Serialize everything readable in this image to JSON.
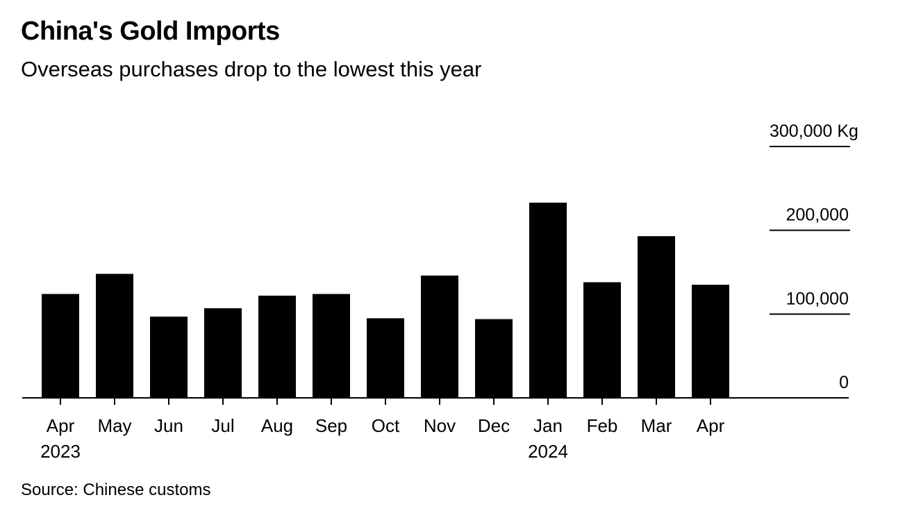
{
  "title": "China's Gold Imports",
  "subtitle": "Overseas purchases drop to the lowest this year",
  "source": "Source: Chinese customs",
  "chart_data": {
    "type": "bar",
    "categories": [
      "Apr",
      "May",
      "Jun",
      "Jul",
      "Aug",
      "Sep",
      "Oct",
      "Nov",
      "Dec",
      "Jan",
      "Feb",
      "Mar",
      "Apr"
    ],
    "year_labels": [
      "2023",
      "",
      "",
      "",
      "",
      "",
      "",
      "",
      "",
      "2024",
      "",
      "",
      ""
    ],
    "values": [
      124000,
      148000,
      97000,
      107000,
      122000,
      124000,
      95000,
      146000,
      94000,
      233000,
      138000,
      193000,
      135000
    ],
    "ylim": [
      0,
      300000
    ],
    "yticks": [
      0,
      100000,
      200000,
      300000
    ],
    "ytick_labels": [
      "0",
      "100,000",
      "200,000",
      "300,000 Kg"
    ],
    "bar_color": "#000000",
    "grid": true,
    "axis_position": "right"
  }
}
